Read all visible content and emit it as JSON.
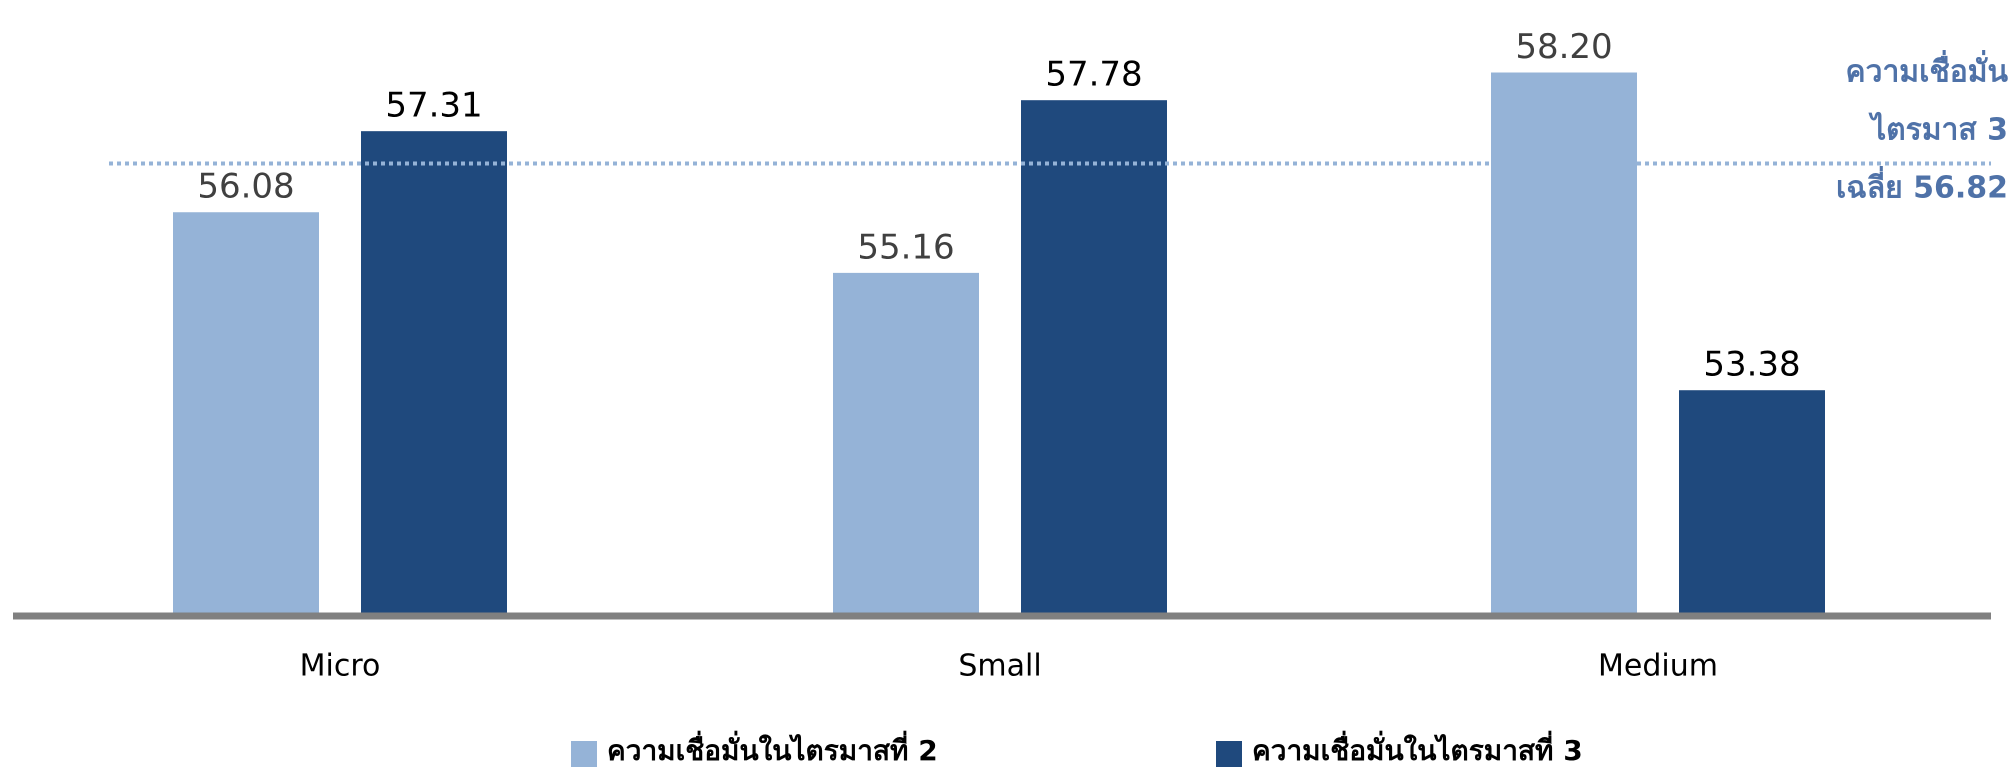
{
  "chart_data": {
    "type": "bar",
    "categories": [
      "Micro",
      "Small",
      "Medium"
    ],
    "series": [
      {
        "name": "ความเชื่อมั่นในไตรมาสที่ 2",
        "color": "#95b3d7",
        "values": [
          56.08,
          55.16,
          58.2
        ],
        "value_labels": [
          "56.08",
          "55.16",
          "58.20"
        ]
      },
      {
        "name": "ความเชื่อมั่นในไตรมาสที่ 3",
        "color": "#1f497d",
        "values": [
          57.31,
          57.78,
          53.38
        ],
        "value_labels": [
          "57.31",
          "57.78",
          "53.38"
        ]
      }
    ],
    "ylim": [
      50,
      59.3
    ],
    "reference_line": {
      "value": 56.82,
      "color": "#95b3d7",
      "label": [
        "ความเชื่อมั่น",
        "ไตรมาส 3",
        "เฉลี่ย 56.82"
      ]
    },
    "legend": "bottom"
  }
}
